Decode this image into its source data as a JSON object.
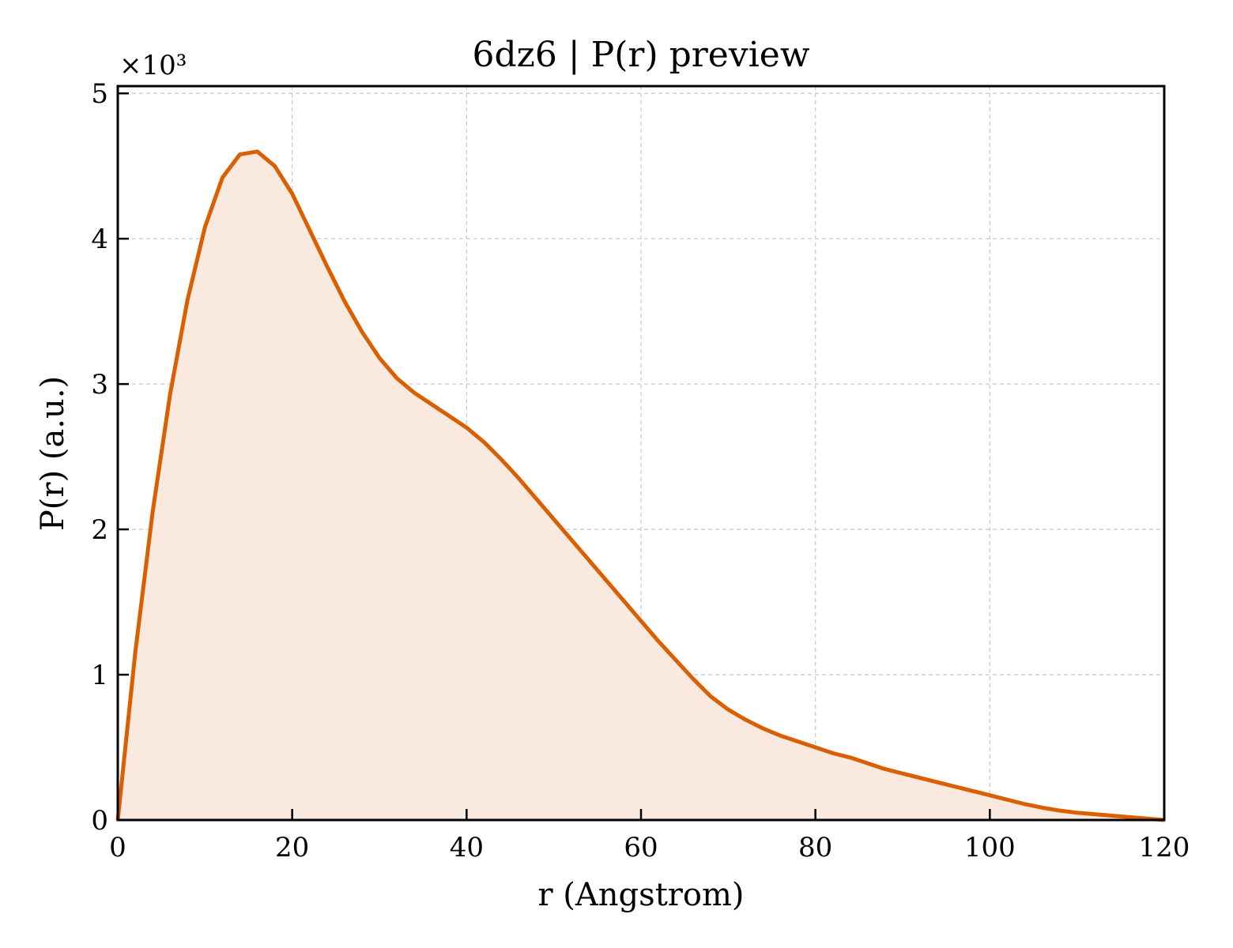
{
  "chart_data": {
    "type": "area",
    "title": "6dz6 | P(r) preview",
    "xlabel": "r (Angstrom)",
    "ylabel": "P(r) (a.u.)",
    "y_multiplier_label": "×10³",
    "xlim": [
      0,
      120
    ],
    "ylim": [
      0,
      5.05
    ],
    "xticks": [
      0,
      20,
      40,
      60,
      80,
      100,
      120
    ],
    "xtick_labels": [
      "0",
      "20",
      "40",
      "60",
      "80",
      "100",
      "120"
    ],
    "yticks": [
      0,
      1,
      2,
      3,
      4,
      5
    ],
    "ytick_labels": [
      "0",
      "1",
      "2",
      "3",
      "4",
      "5"
    ],
    "grid": true,
    "line_color": "#d95f02",
    "fill_color": "#f9e9de",
    "series": [
      {
        "x": [
          0,
          2,
          4,
          6,
          8,
          10,
          12,
          14,
          16,
          18,
          20,
          22,
          24,
          26,
          28,
          30,
          32,
          34,
          36,
          38,
          40,
          42,
          44,
          46,
          48,
          50,
          52,
          54,
          56,
          58,
          60,
          62,
          64,
          66,
          68,
          70,
          72,
          74,
          76,
          78,
          80,
          82,
          84,
          86,
          88,
          90,
          92,
          94,
          96,
          98,
          100,
          102,
          104,
          106,
          108,
          110,
          112,
          114,
          116,
          118,
          120
        ],
        "y": [
          0,
          1.15,
          2.12,
          2.93,
          3.58,
          4.08,
          4.42,
          4.58,
          4.6,
          4.5,
          4.31,
          4.06,
          3.81,
          3.57,
          3.36,
          3.18,
          3.04,
          2.94,
          2.86,
          2.78,
          2.7,
          2.6,
          2.48,
          2.35,
          2.21,
          2.07,
          1.93,
          1.79,
          1.65,
          1.51,
          1.37,
          1.23,
          1.1,
          0.97,
          0.85,
          0.76,
          0.69,
          0.63,
          0.58,
          0.54,
          0.5,
          0.46,
          0.43,
          0.39,
          0.35,
          0.32,
          0.29,
          0.26,
          0.23,
          0.2,
          0.17,
          0.14,
          0.11,
          0.085,
          0.065,
          0.05,
          0.04,
          0.03,
          0.02,
          0.01,
          0
        ]
      }
    ]
  }
}
